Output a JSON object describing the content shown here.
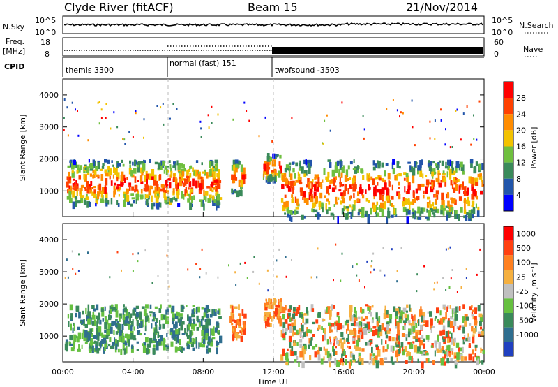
{
  "header": {
    "station": "Clyde River (fitACF)",
    "beam": "Beam 15",
    "date": "21/Nov/2014"
  },
  "noise_panel": {
    "left_label": "N.Sky",
    "left_ticks": [
      "10^5",
      "10^0"
    ],
    "right_ticks": [
      "10^5",
      "10^0"
    ],
    "right_label": "N.Search"
  },
  "freq_panel": {
    "left_label_1": "Freq.",
    "left_label_2": "[MHz]",
    "left_ticks": [
      "18",
      "8"
    ],
    "right_ticks": [
      "60",
      "0"
    ],
    "right_label": "Nave"
  },
  "cpid": {
    "label": "CPID",
    "segments": [
      {
        "name": "themis 3300",
        "start_hour": 0,
        "end_hour": 6
      },
      {
        "name": "normal (fast) 151",
        "start_hour": 6,
        "end_hour": 12
      },
      {
        "name": "twofsound -3503",
        "start_hour": 12,
        "end_hour": 24
      }
    ]
  },
  "chart_data": [
    {
      "type": "heatmap",
      "name": "Power",
      "ylabel": "Slant Range [km]",
      "xlabel": "Time UT",
      "xlim": [
        0,
        24
      ],
      "ylim": [
        200,
        4500
      ],
      "yticks": [
        "1000",
        "2000",
        "3000",
        "4000"
      ],
      "colorbar_label": "Power [dB]",
      "colorbar_ticks": [
        "28",
        "24",
        "20",
        "16",
        "12",
        "8",
        "4"
      ],
      "colors": [
        "#0000ff",
        "#2255aa",
        "#3a8a5a",
        "#6fbf3f",
        "#f2c200",
        "#ff8c00",
        "#ff4000",
        "#ff0000"
      ]
    },
    {
      "type": "heatmap",
      "name": "Velocity",
      "ylabel": "Slant Range [km]",
      "xlabel": "Time UT",
      "xlim": [
        0,
        24
      ],
      "ylim": [
        200,
        4500
      ],
      "yticks": [
        "1000",
        "2000",
        "3000",
        "4000"
      ],
      "colorbar_label": "Velocity [m s⁻¹]",
      "colorbar_ticks": [
        "1000",
        "500",
        "100",
        "25",
        "-25",
        "-100",
        "-500",
        "-1000"
      ],
      "colors": [
        "#2040c0",
        "#2f6e8f",
        "#3a8a5a",
        "#66c040",
        "#c0c0c0",
        "#f5b040",
        "#ff8020",
        "#ff4010",
        "#ff0000"
      ]
    }
  ],
  "time_axis": {
    "label": "Time UT",
    "ticks": [
      "00:00",
      "04:00",
      "08:00",
      "12:00",
      "16:00",
      "20:00",
      "00:00"
    ]
  }
}
